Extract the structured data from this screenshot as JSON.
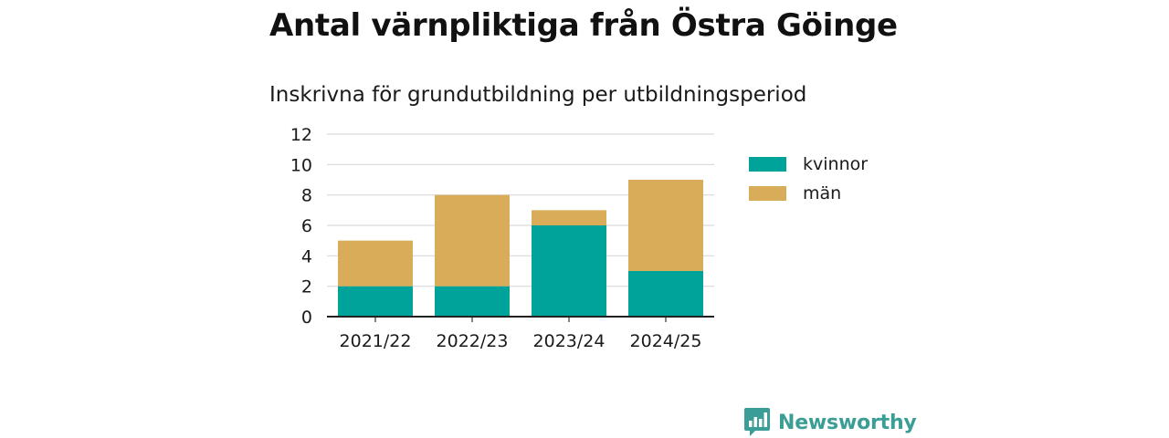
{
  "page": {
    "title": "Antal värnpliktiga från Östra Göinge",
    "subtitle": "Inskrivna för grundutbildning per utbildningsperiod"
  },
  "chart_data": {
    "type": "bar",
    "stacked": true,
    "title": "Antal värnpliktiga från Östra Göinge",
    "subtitle": "Inskrivna för grundutbildning per utbildningsperiod",
    "xlabel": "",
    "ylabel": "",
    "categories": [
      "2021/22",
      "2022/23",
      "2023/24",
      "2024/25"
    ],
    "series": [
      {
        "name": "kvinnor",
        "values": [
          2,
          2,
          6,
          3
        ],
        "color": "#00a39a"
      },
      {
        "name": "män",
        "values": [
          3,
          6,
          1,
          6
        ],
        "color": "#d9ac59"
      }
    ],
    "ylim": [
      0,
      12
    ],
    "yticks": [
      0,
      2,
      4,
      6,
      8,
      10,
      12
    ],
    "grid": true,
    "legend_position": "right"
  },
  "brand": {
    "name": "Newsworthy",
    "logo_icon": "bar-chart-speech-bubble-icon",
    "color": "#3a9e96"
  }
}
